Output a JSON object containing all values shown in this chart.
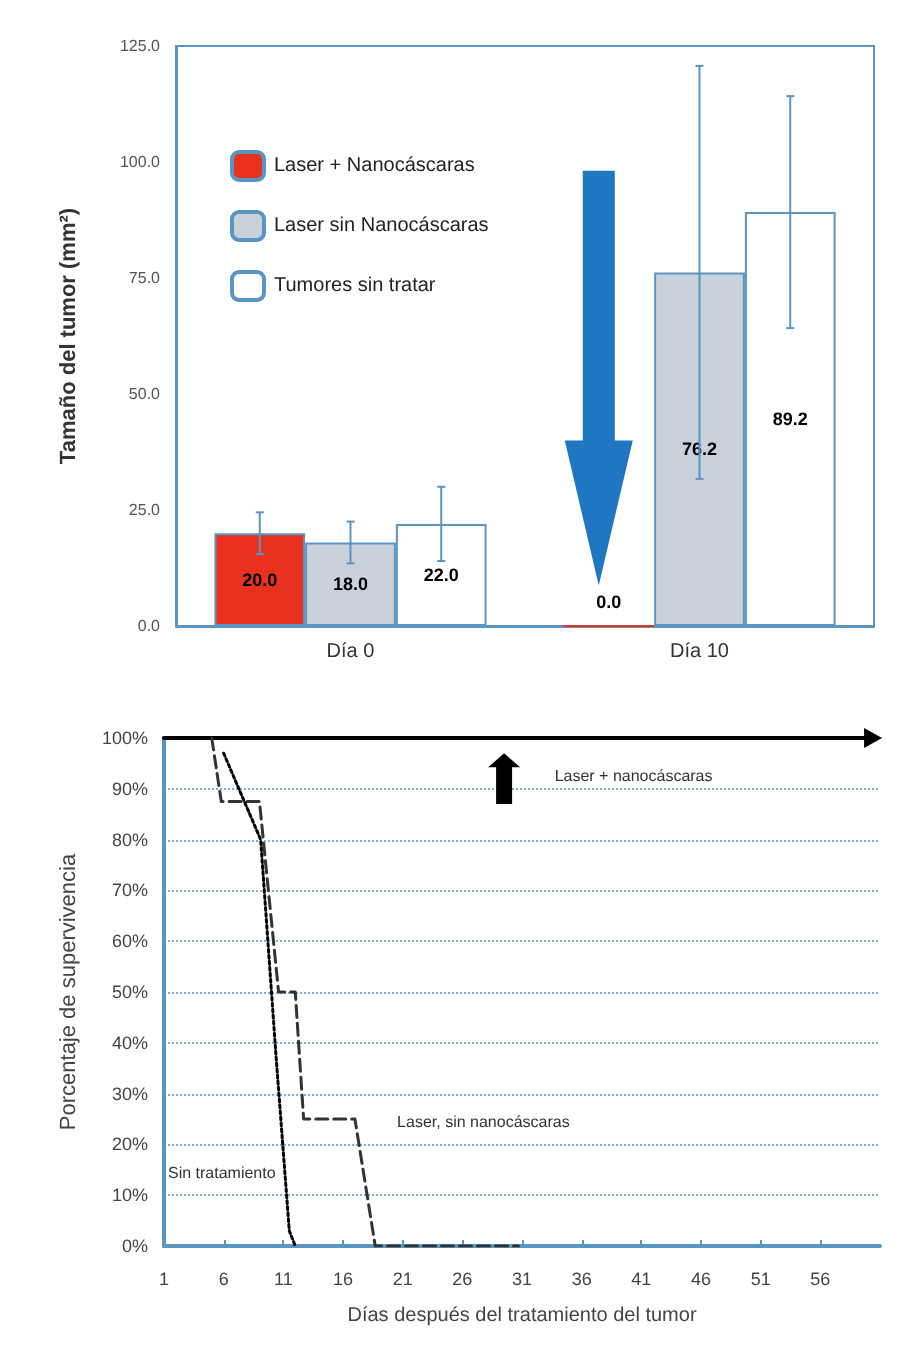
{
  "chart_data": [
    {
      "type": "bar",
      "ylabel": "Tamaño del tumor (mm²)",
      "categories": [
        "Día 0",
        "Día 10"
      ],
      "ylim": [
        0,
        125
      ],
      "yticks": [
        {
          "value": 0,
          "label": "0.0"
        },
        {
          "value": 25,
          "label": "25.0"
        },
        {
          "value": 50,
          "label": "50.0"
        },
        {
          "value": 75,
          "label": "75.0"
        },
        {
          "value": 100,
          "label": "100.0"
        },
        {
          "value": 125,
          "label": "125.0"
        }
      ],
      "legend": "top left",
      "series": [
        {
          "name": "Laser + Nanocáscaras",
          "color": "#e8321e",
          "values": [
            20.0,
            0.0
          ],
          "errors": [
            4.5,
            null
          ],
          "value_labels": [
            "20.0",
            "0.0"
          ]
        },
        {
          "name": "Laser sin Nanocáscaras",
          "color": "#c9d1da",
          "values": [
            18.0,
            76.2
          ],
          "errors": [
            4.5,
            44.5
          ],
          "value_labels": [
            "18.0",
            "76.2"
          ]
        },
        {
          "name": "Tumores sin tratar",
          "color": "#ffffff",
          "values": [
            22.0,
            89.2
          ],
          "errors": [
            8,
            25
          ],
          "value_labels": [
            "22.0",
            "89.2"
          ]
        }
      ]
    },
    {
      "type": "line",
      "xlabel": "Días después del tratamiento del tumor",
      "ylabel": "Porcentaje de supervivencia",
      "xlim": [
        1,
        61
      ],
      "xticks": [
        1,
        6,
        11,
        16,
        21,
        26,
        31,
        36,
        41,
        46,
        51,
        56
      ],
      "ylim": [
        0,
        100
      ],
      "yticks": [
        {
          "value": 0,
          "label": "0%"
        },
        {
          "value": 10,
          "label": "10%"
        },
        {
          "value": 20,
          "label": "20%"
        },
        {
          "value": 30,
          "label": "30%"
        },
        {
          "value": 40,
          "label": "40%"
        },
        {
          "value": 50,
          "label": "50%"
        },
        {
          "value": 60,
          "label": "60%"
        },
        {
          "value": 70,
          "label": "70%"
        },
        {
          "value": 80,
          "label": "80%"
        },
        {
          "value": 90,
          "label": "90%"
        },
        {
          "value": 100,
          "label": "100%"
        }
      ],
      "grid": "y",
      "series": [
        {
          "name": "Laser + nanocáscaras",
          "color": "#000000",
          "line_style": "solid",
          "x": [
            1,
            60
          ],
          "values": [
            100,
            100
          ]
        },
        {
          "name": "Laser, sin nanocáscaras",
          "color": "#333333",
          "line_style": "dashed",
          "x": [
            5,
            5.8,
            9,
            10.6,
            12,
            12.7,
            17,
            18.7,
            30.7
          ],
          "values": [
            100,
            87.5,
            87.5,
            50,
            50,
            25,
            25,
            0,
            0
          ]
        },
        {
          "name": "Sin tratamiento",
          "color": "#000000",
          "line_style": "dotted",
          "x": [
            6,
            9.1,
            10.4,
            11.5,
            12
          ],
          "values": [
            97,
            80,
            37,
            3,
            0
          ]
        }
      ]
    }
  ]
}
